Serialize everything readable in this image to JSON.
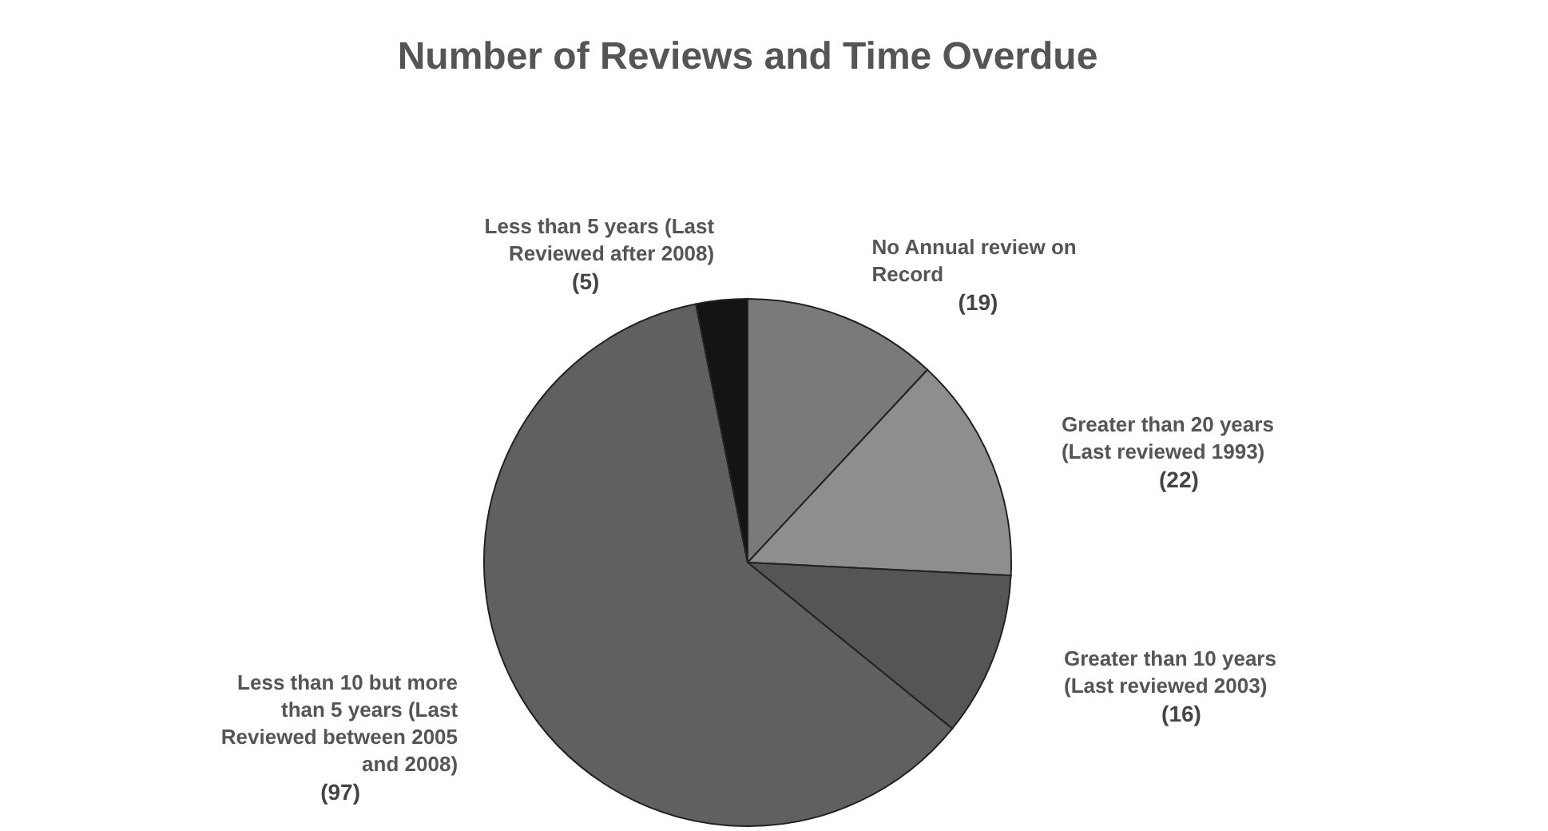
{
  "chart_data": {
    "type": "pie",
    "title": "Number of Reviews and Time Overdue",
    "categories": [
      "No Annual review on Record",
      "Greater than 20 years (Last reviewed 1993)",
      "Greater than 10 years (Last reviewed 2003)",
      "Less than 10 but more than 5 years (Last Reviewed between 2005 and 2008)",
      "Less than 5 years (Last Reviewed after 2008)"
    ],
    "values": [
      19,
      22,
      16,
      97,
      5
    ],
    "colors": [
      "#7a7a7a",
      "#8e8e8e",
      "#555555",
      "#606060",
      "#141414"
    ],
    "value_labels": [
      "(19)",
      "(22)",
      "(16)",
      "(97)",
      "(5)"
    ]
  }
}
